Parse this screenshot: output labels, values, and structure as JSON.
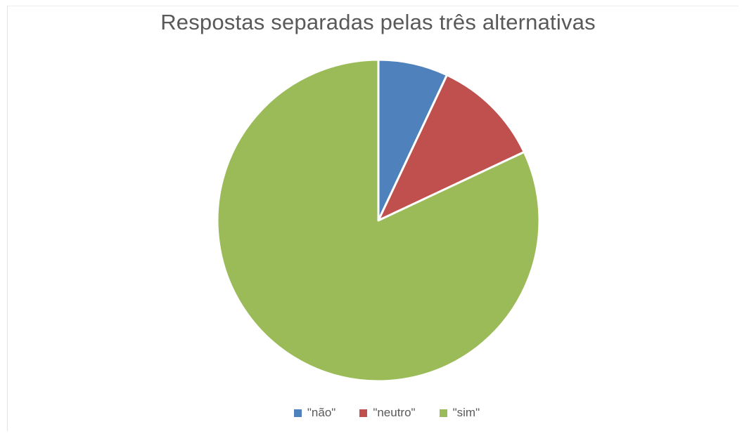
{
  "chart_data": {
    "type": "pie",
    "title": "Respostas separadas pelas três alternativas",
    "categories": [
      "\"não\"",
      "\"neutro\"",
      "\"sim\""
    ],
    "values": [
      7,
      11,
      82
    ],
    "colors": [
      "#4F81BD",
      "#C0504D",
      "#9BBB59"
    ],
    "legend_position": "bottom"
  }
}
